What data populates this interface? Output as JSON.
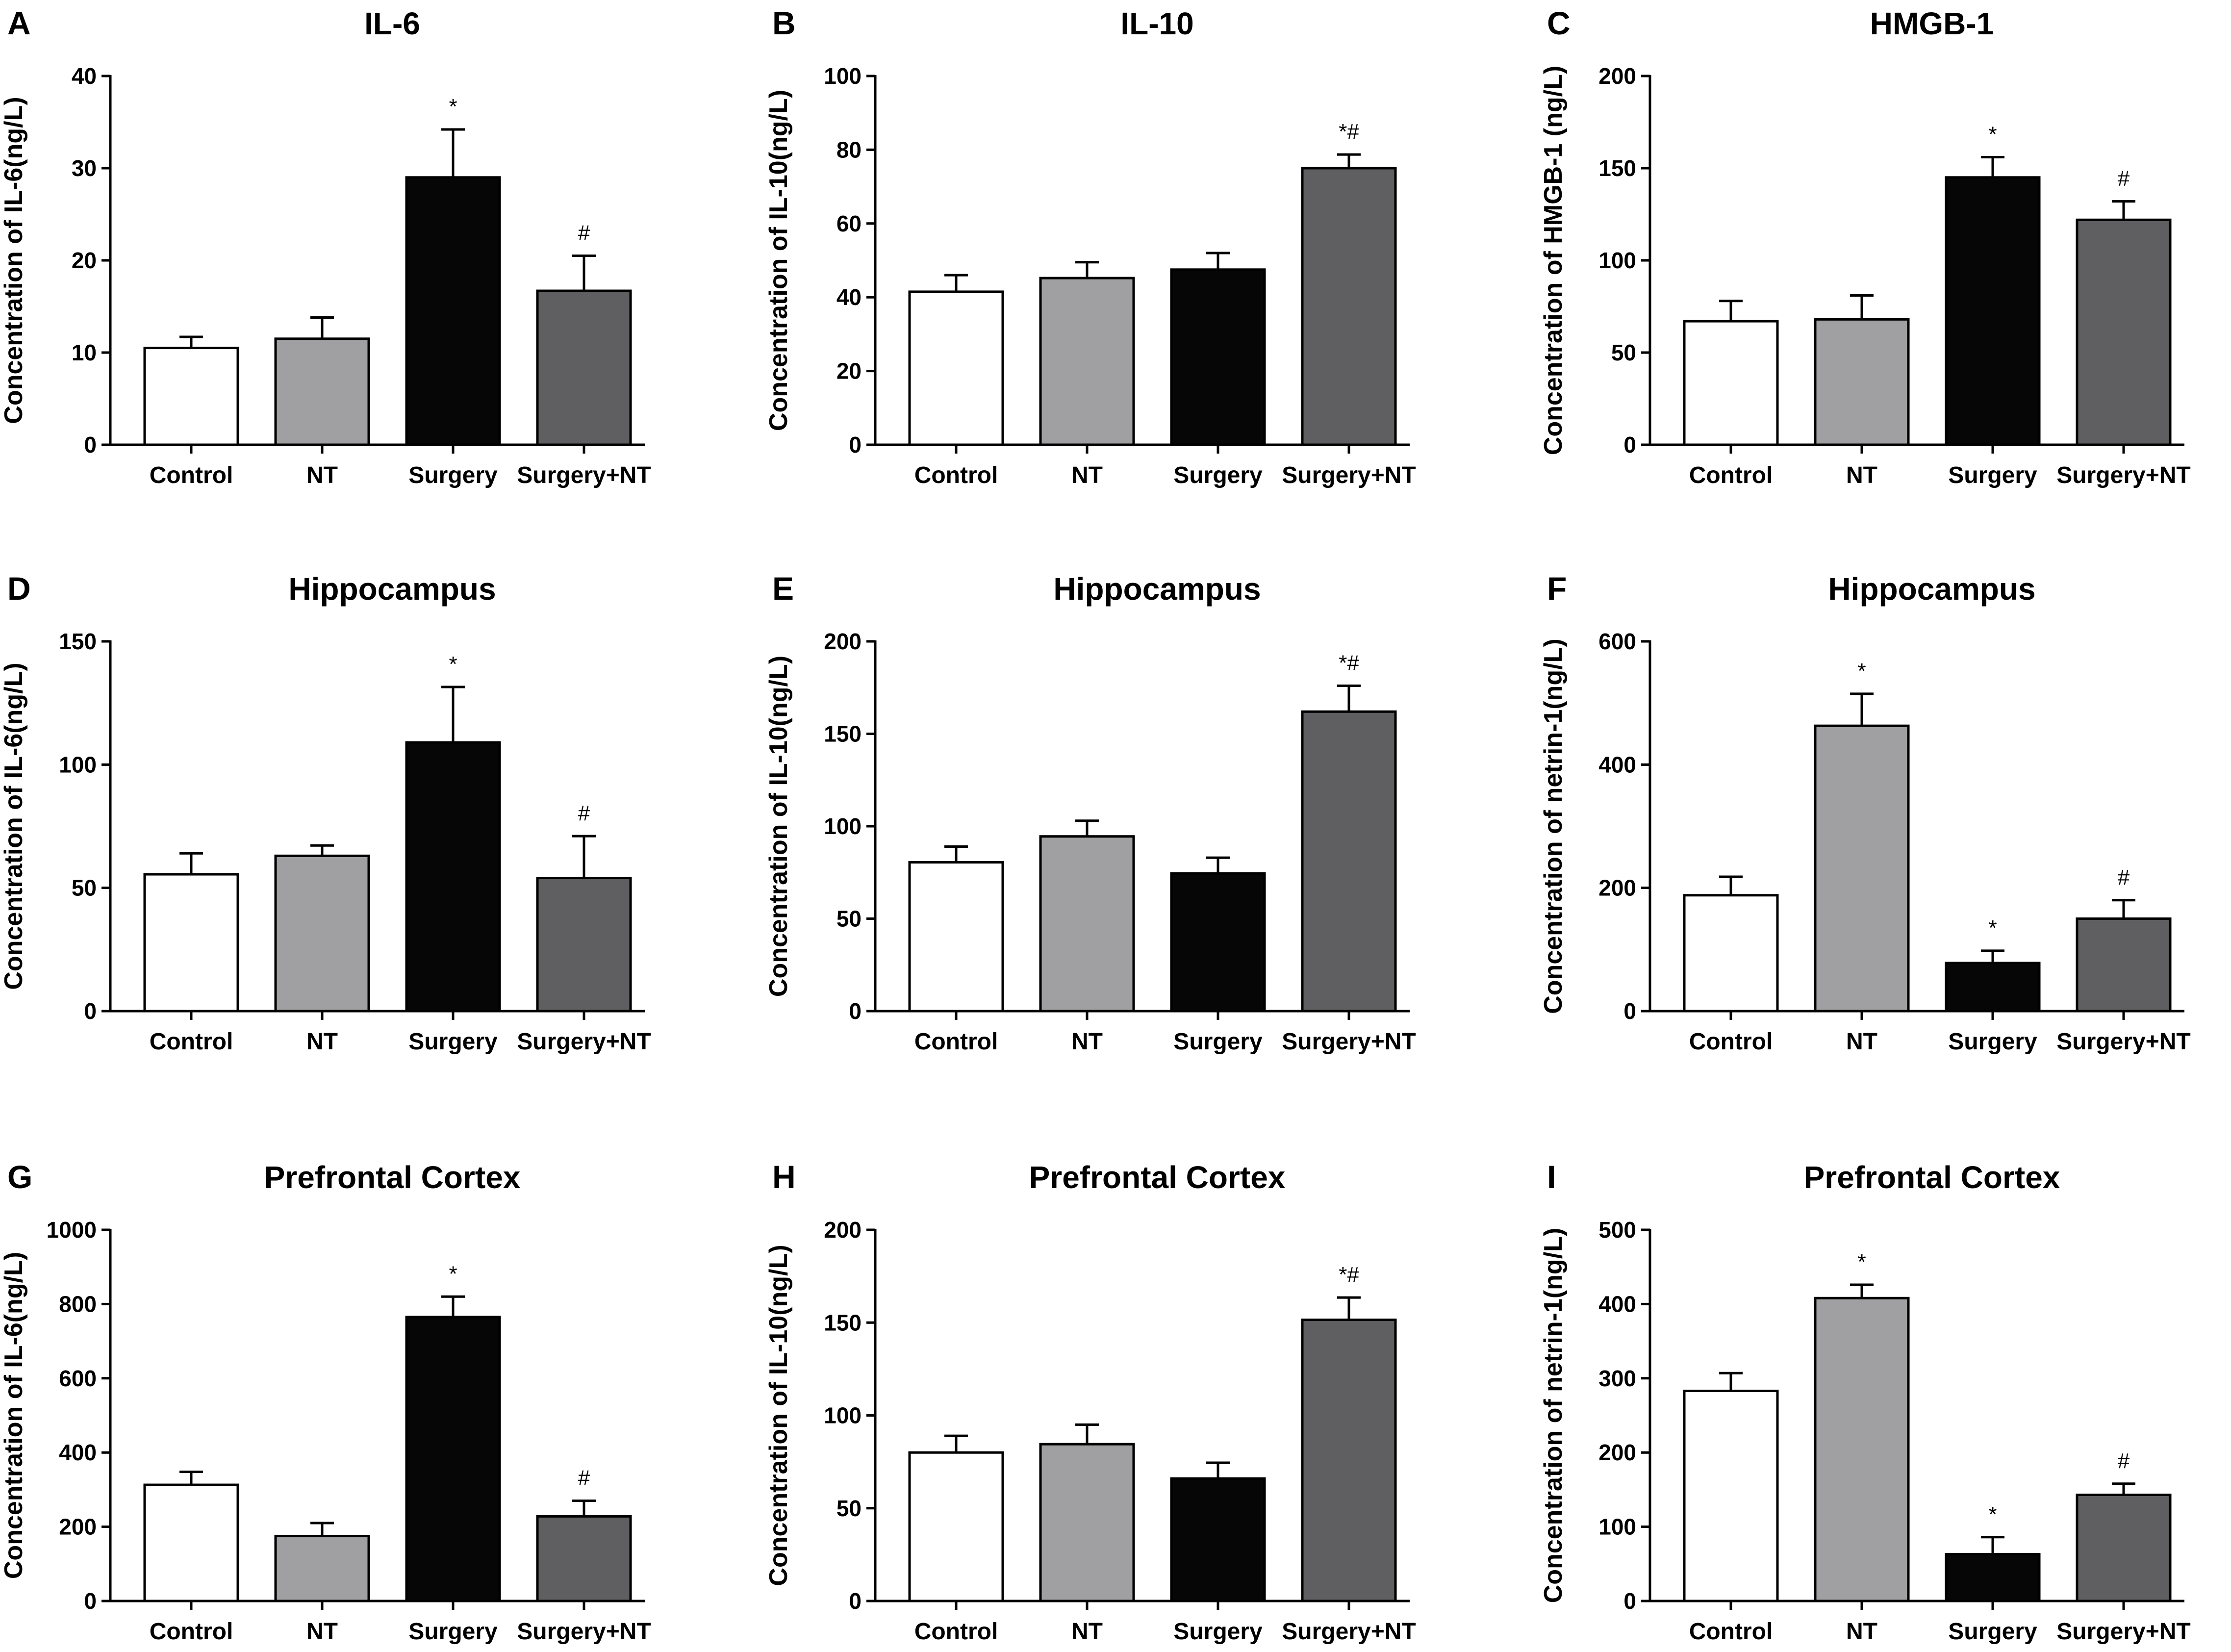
{
  "colors": {
    "Control": "#ffffff",
    "NT": "#a0a0a2",
    "Surgery": "#060606",
    "Surgery+NT": "#5f5f61"
  },
  "chart_data": [
    {
      "type": "bar",
      "letter": "A",
      "title": "IL-6",
      "ylabel": "Concentration of IL-6(ng/L)",
      "ylim": [
        0,
        40
      ],
      "yticks": [
        0,
        10,
        20,
        30,
        40
      ],
      "categories": [
        "Control",
        "NT",
        "Surgery",
        "Surgery+NT"
      ],
      "values": [
        10.5,
        11.5,
        29,
        16.7
      ],
      "errors": [
        1.2,
        2.3,
        5.2,
        3.8
      ],
      "annotations": [
        "",
        "",
        "*",
        "#"
      ]
    },
    {
      "type": "bar",
      "letter": "B",
      "title": "IL-10",
      "ylabel": "Concentration of IL-10(ng/L)",
      "ylim": [
        0,
        100
      ],
      "yticks": [
        0,
        20,
        40,
        60,
        80,
        100
      ],
      "categories": [
        "Control",
        "NT",
        "Surgery",
        "Surgery+NT"
      ],
      "values": [
        41.5,
        45.2,
        47.5,
        75
      ],
      "errors": [
        4.5,
        4.3,
        4.5,
        3.7
      ],
      "annotations": [
        "",
        "",
        "",
        "*#"
      ]
    },
    {
      "type": "bar",
      "letter": "C",
      "title": "HMGB-1",
      "ylabel": "Concentration of HMGB-1 (ng/L)",
      "ylim": [
        0,
        200
      ],
      "yticks": [
        0,
        50,
        100,
        150,
        200
      ],
      "categories": [
        "Control",
        "NT",
        "Surgery",
        "Surgery+NT"
      ],
      "values": [
        67,
        68,
        145,
        122
      ],
      "errors": [
        11,
        13,
        11,
        10
      ],
      "annotations": [
        "",
        "",
        "*",
        "#"
      ]
    },
    {
      "type": "bar",
      "letter": "D",
      "title": "Hippocampus",
      "ylabel": "Concentration of IL-6(ng/L)",
      "ylim": [
        0,
        150
      ],
      "yticks": [
        0,
        50,
        100,
        150
      ],
      "categories": [
        "Control",
        "NT",
        "Surgery",
        "Surgery+NT"
      ],
      "values": [
        55.5,
        63,
        109,
        54
      ],
      "errors": [
        8.5,
        4.2,
        22.5,
        17
      ],
      "annotations": [
        "",
        "",
        "*",
        "#"
      ]
    },
    {
      "type": "bar",
      "letter": "E",
      "title": "Hippocampus",
      "ylabel": "Concentration of IL-10(ng/L)",
      "ylim": [
        0,
        200
      ],
      "yticks": [
        0,
        50,
        100,
        150,
        200
      ],
      "categories": [
        "Control",
        "NT",
        "Surgery",
        "Surgery+NT"
      ],
      "values": [
        80.5,
        94.5,
        74.5,
        162
      ],
      "errors": [
        8.5,
        8.5,
        8.5,
        14
      ],
      "annotations": [
        "",
        "",
        "",
        "*#"
      ]
    },
    {
      "type": "bar",
      "letter": "F",
      "title": "Hippocampus",
      "ylabel": "Concentration of netrin-1(ng/L)",
      "ylim": [
        0,
        600
      ],
      "yticks": [
        0,
        200,
        400,
        600
      ],
      "categories": [
        "Control",
        "NT",
        "Surgery",
        "Surgery+NT"
      ],
      "values": [
        188,
        463,
        78,
        150
      ],
      "errors": [
        30,
        52,
        20,
        30
      ],
      "annotations": [
        "",
        "*",
        "*",
        "#"
      ]
    },
    {
      "type": "bar",
      "letter": "G",
      "title": "Prefrontal Cortex",
      "ylabel": "Concentration of IL-6(ng/L)",
      "ylim": [
        0,
        1000
      ],
      "yticks": [
        0,
        200,
        400,
        600,
        800,
        1000
      ],
      "categories": [
        "Control",
        "NT",
        "Surgery",
        "Surgery+NT"
      ],
      "values": [
        313,
        175,
        765,
        228
      ],
      "errors": [
        35,
        35,
        55,
        42
      ],
      "annotations": [
        "",
        "",
        "*",
        "#"
      ]
    },
    {
      "type": "bar",
      "letter": "H",
      "title": "Prefrontal Cortex",
      "ylabel": "Concentration of IL-10(ng/L)",
      "ylim": [
        0,
        200
      ],
      "yticks": [
        0,
        50,
        100,
        150,
        200
      ],
      "categories": [
        "Control",
        "NT",
        "Surgery",
        "Surgery+NT"
      ],
      "values": [
        80,
        84.5,
        66,
        151.5
      ],
      "errors": [
        9,
        10.5,
        8.5,
        12
      ],
      "annotations": [
        "",
        "",
        "",
        "*#"
      ]
    },
    {
      "type": "bar",
      "letter": "I",
      "title": "Prefrontal Cortex",
      "ylabel": "Concentration of netrin-1(ng/L)",
      "ylim": [
        0,
        500
      ],
      "yticks": [
        0,
        100,
        200,
        300,
        400,
        500
      ],
      "categories": [
        "Control",
        "NT",
        "Surgery",
        "Surgery+NT"
      ],
      "values": [
        283,
        408,
        63,
        143
      ],
      "errors": [
        24,
        18,
        23,
        15
      ],
      "annotations": [
        "",
        "*",
        "*",
        "#"
      ]
    }
  ]
}
